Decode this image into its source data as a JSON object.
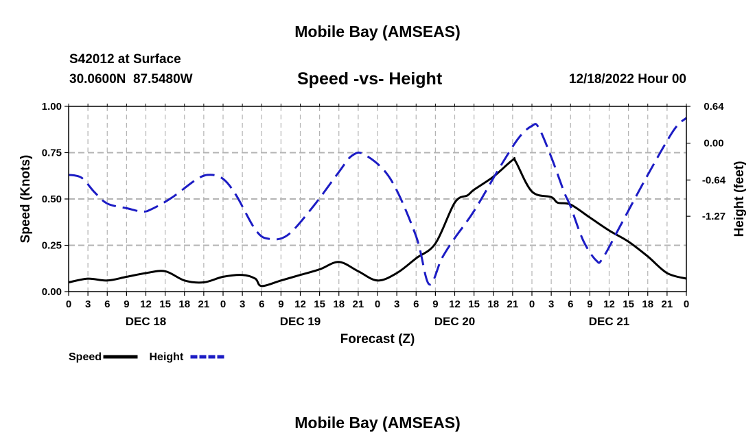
{
  "header": {
    "title": "Mobile Bay (AMSEAS)",
    "station": "S42012 at Surface",
    "coords": "30.0600N  87.5480W",
    "chart_title": "Speed -vs- Height",
    "datetime": "12/18/2022 Hour 00"
  },
  "footer": {
    "title": "Mobile Bay (AMSEAS)"
  },
  "chart_data": {
    "type": "line",
    "title": "Speed -vs- Height",
    "xlabel": "Forecast (Z)",
    "ylabel": "Speed (Knots)",
    "ylabel_right": "Height (feet)",
    "x_range_hours": [
      0,
      96
    ],
    "x_tick_labels": [
      "0",
      "3",
      "6",
      "9",
      "12",
      "15",
      "18",
      "21",
      "0",
      "3",
      "6",
      "9",
      "12",
      "15",
      "18",
      "21",
      "0",
      "3",
      "6",
      "9",
      "12",
      "15",
      "18",
      "21",
      "0",
      "3",
      "6",
      "9",
      "12",
      "15",
      "18",
      "21",
      "0"
    ],
    "x_day_labels": [
      {
        "label": "DEC 18",
        "hour": 12
      },
      {
        "label": "DEC 19",
        "hour": 36
      },
      {
        "label": "DEC 20",
        "hour": 60
      },
      {
        "label": "DEC 21",
        "hour": 84
      }
    ],
    "ylim": [
      0,
      1.0
    ],
    "y_ticks": [
      "0.00",
      "0.25",
      "0.50",
      "0.75",
      "1.00"
    ],
    "y2lim": [
      -2.58,
      0.64
    ],
    "y2_ticks": [
      {
        "label": "0.64",
        "value": 0.64
      },
      {
        "label": "0.00",
        "value": 0.0
      },
      {
        "label": "-0.64",
        "value": -0.64
      },
      {
        "label": "-1.27",
        "value": -1.27
      }
    ],
    "grid": true,
    "legend": [
      {
        "name": "Speed",
        "color": "#000000",
        "style": "solid"
      },
      {
        "name": "Height",
        "color": "#1c1cc4",
        "style": "dashed"
      }
    ],
    "series": [
      {
        "name": "Speed",
        "axis": "left",
        "color": "#000000",
        "x": [
          0,
          3,
          6,
          9,
          12,
          15,
          18,
          21,
          24,
          27,
          29,
          30,
          33,
          36,
          39,
          42,
          45,
          48,
          51,
          54,
          57,
          60,
          62,
          63,
          66,
          69,
          69.5,
          72,
          75,
          76,
          78,
          81,
          84,
          87,
          90,
          93,
          96
        ],
        "values": [
          0.05,
          0.07,
          0.06,
          0.08,
          0.1,
          0.11,
          0.06,
          0.05,
          0.08,
          0.09,
          0.07,
          0.03,
          0.06,
          0.09,
          0.12,
          0.16,
          0.11,
          0.06,
          0.1,
          0.18,
          0.26,
          0.48,
          0.52,
          0.55,
          0.62,
          0.71,
          0.7,
          0.54,
          0.51,
          0.48,
          0.47,
          0.4,
          0.33,
          0.27,
          0.19,
          0.1,
          0.07
        ]
      },
      {
        "name": "Height",
        "axis": "right",
        "color": "#1c1cc4",
        "x": [
          0,
          2,
          4,
          6,
          9,
          11.5,
          13,
          16,
          20,
          22,
          24,
          26,
          29,
          31,
          34,
          38,
          42,
          44,
          46,
          50,
          54,
          56,
          58,
          60,
          63,
          67,
          70,
          72,
          73,
          75,
          77,
          78,
          80,
          82,
          83,
          86,
          90,
          94,
          96
        ],
        "values": [
          -0.55,
          -0.6,
          -0.85,
          -1.05,
          -1.13,
          -1.19,
          -1.14,
          -0.95,
          -0.62,
          -0.55,
          -0.62,
          -0.9,
          -1.5,
          -1.66,
          -1.6,
          -1.1,
          -0.5,
          -0.22,
          -0.2,
          -0.62,
          -1.62,
          -2.45,
          -2.0,
          -1.65,
          -1.18,
          -0.42,
          0.1,
          0.3,
          0.28,
          -0.24,
          -0.85,
          -1.1,
          -1.7,
          -2.04,
          -2.0,
          -1.38,
          -0.55,
          0.22,
          0.44
        ]
      }
    ]
  }
}
